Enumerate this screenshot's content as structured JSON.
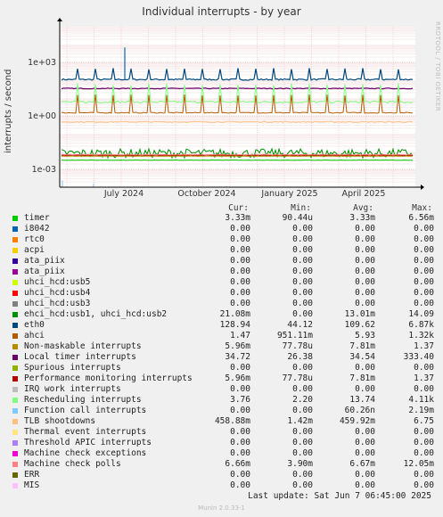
{
  "title": "Individual interrupts - by year",
  "ylabel": "interrupts / second",
  "watermark": "RRDTOOL / TOBI OETIKER",
  "footer": "Munin 2.0.33-1",
  "last_update": "Last update:  Sat Jun  7 06:45:00 2025",
  "columns": [
    "Cur:",
    "Min:",
    "Avg:",
    "Max:"
  ],
  "chart_data": {
    "type": "line",
    "title": "Individual interrupts - by year",
    "ylabel": "interrupts / second",
    "yscale": "log",
    "ylim": [
      0.0001,
      100000
    ],
    "y_ticks": [
      "1e-03",
      "1e+00",
      "1e+03"
    ],
    "x_ticks": [
      "July 2024",
      "October 2024",
      "January 2025",
      "April 2025"
    ],
    "grid": true,
    "series": [
      {
        "name": "timer",
        "color": "#00cc00",
        "cur": "3.33m",
        "min": "90.44u",
        "avg": "3.33m",
        "max": "6.56m"
      },
      {
        "name": "i8042",
        "color": "#0066b3",
        "cur": "0.00",
        "min": "0.00",
        "avg": "0.00",
        "max": "0.00"
      },
      {
        "name": "rtc0",
        "color": "#ff8000",
        "cur": "0.00",
        "min": "0.00",
        "avg": "0.00",
        "max": "0.00"
      },
      {
        "name": "acpi",
        "color": "#ffcc00",
        "cur": "0.00",
        "min": "0.00",
        "avg": "0.00",
        "max": "0.00"
      },
      {
        "name": "ata_piix",
        "color": "#330099",
        "cur": "0.00",
        "min": "0.00",
        "avg": "0.00",
        "max": "0.00"
      },
      {
        "name": "ata_piix",
        "color": "#990099",
        "cur": "0.00",
        "min": "0.00",
        "avg": "0.00",
        "max": "0.00"
      },
      {
        "name": "uhci_hcd:usb5",
        "color": "#ccff00",
        "cur": "0.00",
        "min": "0.00",
        "avg": "0.00",
        "max": "0.00"
      },
      {
        "name": "uhci_hcd:usb4",
        "color": "#ff0000",
        "cur": "0.00",
        "min": "0.00",
        "avg": "0.00",
        "max": "0.00"
      },
      {
        "name": "uhci_hcd:usb3",
        "color": "#808080",
        "cur": "0.00",
        "min": "0.00",
        "avg": "0.00",
        "max": "0.00"
      },
      {
        "name": "ehci_hcd:usb1, uhci_hcd:usb2",
        "color": "#008f00",
        "cur": "21.08m",
        "min": "0.00",
        "avg": "13.01m",
        "max": "14.09"
      },
      {
        "name": "eth0",
        "color": "#00487d",
        "cur": "128.94",
        "min": "44.12",
        "avg": "109.62",
        "max": "6.87k"
      },
      {
        "name": "ahci",
        "color": "#b35a00",
        "cur": "1.47",
        "min": "951.11m",
        "avg": "5.93",
        "max": "1.32k"
      },
      {
        "name": "Non-maskable interrupts",
        "color": "#b38f00",
        "cur": "5.96m",
        "min": "77.78u",
        "avg": "7.81m",
        "max": "1.37"
      },
      {
        "name": "Local timer interrupts",
        "color": "#6b006b",
        "cur": "34.72",
        "min": "26.38",
        "avg": "34.54",
        "max": "333.40"
      },
      {
        "name": "Spurious interrupts",
        "color": "#8fb300",
        "cur": "0.00",
        "min": "0.00",
        "avg": "0.00",
        "max": "0.00"
      },
      {
        "name": "Performance monitoring interrupts",
        "color": "#b30000",
        "cur": "5.96m",
        "min": "77.78u",
        "avg": "7.81m",
        "max": "1.37"
      },
      {
        "name": "IRQ work interrupts",
        "color": "#bebebe",
        "cur": "0.00",
        "min": "0.00",
        "avg": "0.00",
        "max": "0.00"
      },
      {
        "name": "Rescheduling interrupts",
        "color": "#80ff80",
        "cur": "3.76",
        "min": "2.20",
        "avg": "13.74",
        "max": "4.11k"
      },
      {
        "name": "Function call interrupts",
        "color": "#80c9ff",
        "cur": "0.00",
        "min": "0.00",
        "avg": "60.26n",
        "max": "2.19m"
      },
      {
        "name": "TLB shootdowns",
        "color": "#ffc080",
        "cur": "458.88m",
        "min": "1.42m",
        "avg": "459.92m",
        "max": "6.75"
      },
      {
        "name": "Thermal event interrupts",
        "color": "#ffe680",
        "cur": "0.00",
        "min": "0.00",
        "avg": "0.00",
        "max": "0.00"
      },
      {
        "name": "Threshold APIC interrupts",
        "color": "#aa80ff",
        "cur": "0.00",
        "min": "0.00",
        "avg": "0.00",
        "max": "0.00"
      },
      {
        "name": "Machine check exceptions",
        "color": "#ee00cc",
        "cur": "0.00",
        "min": "0.00",
        "avg": "0.00",
        "max": "0.00"
      },
      {
        "name": "Machine check polls",
        "color": "#ff8080",
        "cur": "6.66m",
        "min": "3.90m",
        "avg": "6.67m",
        "max": "12.05m"
      },
      {
        "name": "ERR",
        "color": "#666600",
        "cur": "0.00",
        "min": "0.00",
        "avg": "0.00",
        "max": "0.00"
      },
      {
        "name": "MIS",
        "color": "#ffbfff",
        "cur": "0.00",
        "min": "0.00",
        "avg": "0.00",
        "max": "0.00"
      }
    ]
  }
}
